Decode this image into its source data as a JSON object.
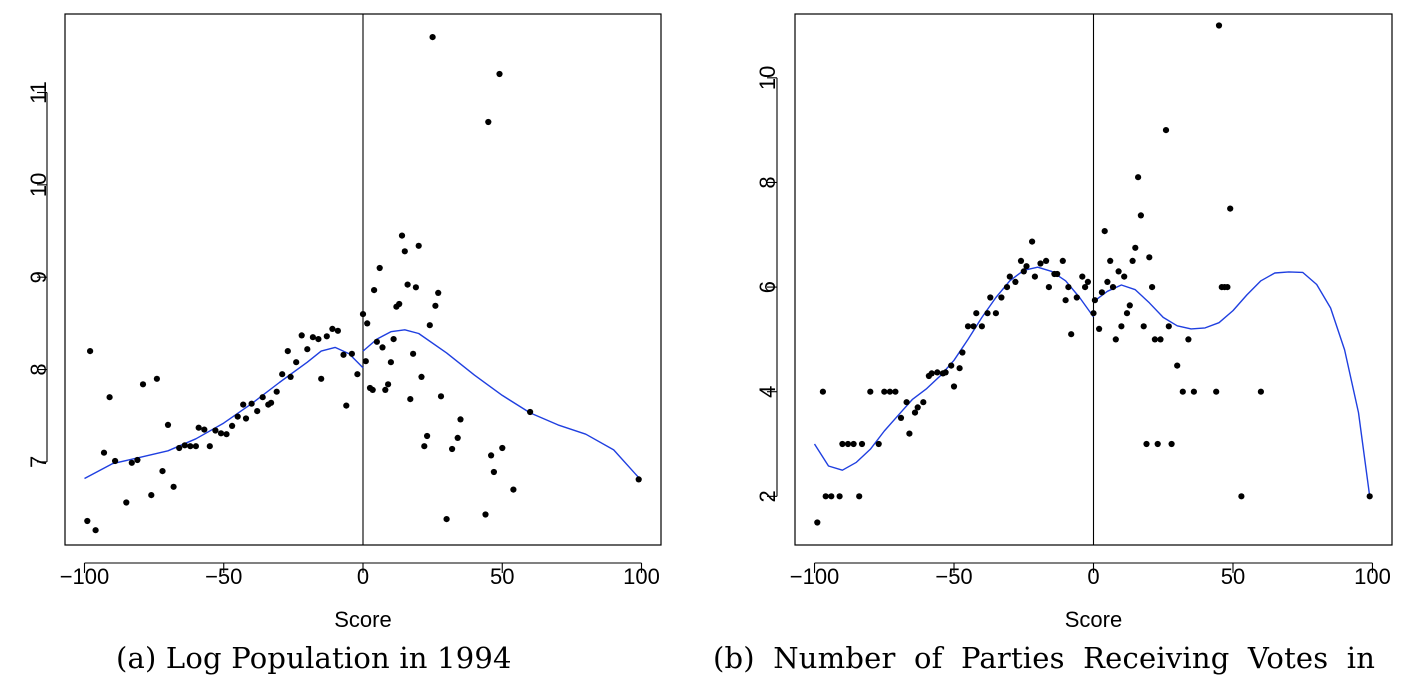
{
  "captions": {
    "a": "(a) Log Population in 1994",
    "b": "(b)  Number  of  Parties  Receiving  Votes  in"
  },
  "chart_data": [
    {
      "type": "scatter",
      "title": "",
      "caption": "(a) Log Population in 1994",
      "xlabel": "Score",
      "ylabel": "",
      "xlim": [
        -107,
        107
      ],
      "ylim": [
        6.1,
        11.85
      ],
      "xticks": [
        -100,
        -50,
        0,
        50,
        100
      ],
      "xtick_labels": [
        "−100",
        "−50",
        "0",
        "50",
        "100"
      ],
      "yticks": [
        7,
        8,
        9,
        10,
        11
      ],
      "ytick_labels": [
        "7",
        "8",
        "9",
        "10",
        "11"
      ],
      "cutoff_line_x": 0,
      "grid": false,
      "point_color": "#000000",
      "fit_color": "#1f3fe0",
      "points": [
        [
          -99,
          6.36
        ],
        [
          -98,
          8.2
        ],
        [
          -96,
          6.26
        ],
        [
          -93,
          7.1
        ],
        [
          -91,
          7.7
        ],
        [
          -89,
          7.01
        ],
        [
          -85,
          6.56
        ],
        [
          -83,
          6.99
        ],
        [
          -81,
          7.02
        ],
        [
          -79,
          7.84
        ],
        [
          -76,
          6.64
        ],
        [
          -74,
          7.9
        ],
        [
          -72,
          6.9
        ],
        [
          -70,
          7.4
        ],
        [
          -68,
          6.73
        ],
        [
          -66,
          7.15
        ],
        [
          -64,
          7.18
        ],
        [
          -62,
          7.17
        ],
        [
          -60,
          7.17
        ],
        [
          -59,
          7.37
        ],
        [
          -57,
          7.35
        ],
        [
          -55,
          7.17
        ],
        [
          -53,
          7.34
        ],
        [
          -51,
          7.31
        ],
        [
          -49,
          7.3
        ],
        [
          -47,
          7.39
        ],
        [
          -45,
          7.49
        ],
        [
          -43,
          7.62
        ],
        [
          -42,
          7.47
        ],
        [
          -40,
          7.63
        ],
        [
          -38,
          7.55
        ],
        [
          -36,
          7.7
        ],
        [
          -34,
          7.62
        ],
        [
          -33,
          7.64
        ],
        [
          -31,
          7.76
        ],
        [
          -29,
          7.95
        ],
        [
          -27,
          8.2
        ],
        [
          -26,
          7.92
        ],
        [
          -24,
          8.08
        ],
        [
          -22,
          8.37
        ],
        [
          -20,
          8.22
        ],
        [
          -18,
          8.35
        ],
        [
          -16,
          8.33
        ],
        [
          -15,
          7.9
        ],
        [
          -13,
          8.36
        ],
        [
          -11,
          8.44
        ],
        [
          -9,
          8.42
        ],
        [
          -7,
          8.16
        ],
        [
          -6,
          7.61
        ],
        [
          -4,
          8.17
        ],
        [
          -2,
          7.95
        ],
        [
          0,
          8.6
        ],
        [
          1,
          8.09
        ],
        [
          1.5,
          8.5
        ],
        [
          2.5,
          7.8
        ],
        [
          3.5,
          7.78
        ],
        [
          4,
          8.86
        ],
        [
          5,
          8.3
        ],
        [
          6,
          9.1
        ],
        [
          7,
          8.24
        ],
        [
          8,
          7.78
        ],
        [
          9,
          7.84
        ],
        [
          10,
          8.08
        ],
        [
          11,
          8.33
        ],
        [
          12,
          8.68
        ],
        [
          13,
          8.71
        ],
        [
          14,
          9.45
        ],
        [
          15,
          9.28
        ],
        [
          16,
          8.92
        ],
        [
          17,
          7.68
        ],
        [
          18,
          8.17
        ],
        [
          19,
          8.89
        ],
        [
          20,
          9.34
        ],
        [
          21,
          7.92
        ],
        [
          22,
          7.17
        ],
        [
          23,
          7.28
        ],
        [
          24,
          8.48
        ],
        [
          25,
          11.6
        ],
        [
          26,
          8.69
        ],
        [
          27,
          8.83
        ],
        [
          28,
          7.71
        ],
        [
          30,
          6.38
        ],
        [
          32,
          7.14
        ],
        [
          34,
          7.26
        ],
        [
          35,
          7.46
        ],
        [
          44,
          6.43
        ],
        [
          45,
          10.68
        ],
        [
          46,
          7.07
        ],
        [
          47,
          6.89
        ],
        [
          49,
          11.2
        ],
        [
          50,
          7.15
        ],
        [
          54,
          6.7
        ],
        [
          60,
          7.54
        ],
        [
          99,
          6.81
        ]
      ],
      "fit_left": [
        [
          -100,
          6.82
        ],
        [
          -90,
          6.98
        ],
        [
          -80,
          7.05
        ],
        [
          -70,
          7.12
        ],
        [
          -60,
          7.25
        ],
        [
          -50,
          7.42
        ],
        [
          -40,
          7.63
        ],
        [
          -30,
          7.86
        ],
        [
          -20,
          8.08
        ],
        [
          -15,
          8.2
        ],
        [
          -10,
          8.24
        ],
        [
          -5,
          8.17
        ],
        [
          0,
          8.02
        ]
      ],
      "fit_right": [
        [
          0,
          8.2
        ],
        [
          5,
          8.33
        ],
        [
          10,
          8.41
        ],
        [
          15,
          8.43
        ],
        [
          20,
          8.39
        ],
        [
          30,
          8.18
        ],
        [
          40,
          7.94
        ],
        [
          50,
          7.72
        ],
        [
          60,
          7.53
        ],
        [
          70,
          7.4
        ],
        [
          80,
          7.3
        ],
        [
          90,
          7.13
        ],
        [
          99,
          6.83
        ]
      ]
    },
    {
      "type": "scatter",
      "title": "",
      "caption": "(b)  Number  of  Parties  Receiving  Votes  in",
      "xlabel": "Score",
      "ylabel": "",
      "xlim": [
        -107,
        107
      ],
      "ylim": [
        1.07,
        11.22
      ],
      "xticks": [
        -100,
        -50,
        0,
        50,
        100
      ],
      "xtick_labels": [
        "−100",
        "−50",
        "0",
        "50",
        "100"
      ],
      "yticks": [
        2,
        4,
        6,
        8,
        10
      ],
      "ytick_labels": [
        "2",
        "4",
        "6",
        "8",
        "10"
      ],
      "cutoff_line_x": 0,
      "grid": false,
      "point_color": "#000000",
      "fit_color": "#1f3fe0",
      "points": [
        [
          -99,
          1.5
        ],
        [
          -97,
          4
        ],
        [
          -96,
          2
        ],
        [
          -94,
          2
        ],
        [
          -91,
          2
        ],
        [
          -90,
          3
        ],
        [
          -88,
          3
        ],
        [
          -86,
          3
        ],
        [
          -84,
          2
        ],
        [
          -83,
          3
        ],
        [
          -80,
          4
        ],
        [
          -77,
          3
        ],
        [
          -75,
          4
        ],
        [
          -73,
          4
        ],
        [
          -71,
          4
        ],
        [
          -69,
          3.5
        ],
        [
          -67,
          3.8
        ],
        [
          -66,
          3.2
        ],
        [
          -64,
          3.6
        ],
        [
          -63,
          3.7
        ],
        [
          -61,
          3.8
        ],
        [
          -59,
          4.3
        ],
        [
          -58,
          4.35
        ],
        [
          -56,
          4.37
        ],
        [
          -54,
          4.35
        ],
        [
          -53,
          4.37
        ],
        [
          -51,
          4.5
        ],
        [
          -50,
          4.1
        ],
        [
          -48,
          4.45
        ],
        [
          -47,
          4.75
        ],
        [
          -45,
          5.25
        ],
        [
          -43,
          5.25
        ],
        [
          -42,
          5.5
        ],
        [
          -40,
          5.25
        ],
        [
          -38,
          5.5
        ],
        [
          -37,
          5.8
        ],
        [
          -35,
          5.5
        ],
        [
          -33,
          5.8
        ],
        [
          -31,
          6
        ],
        [
          -30,
          6.2
        ],
        [
          -28,
          6.1
        ],
        [
          -26,
          6.5
        ],
        [
          -25,
          6.3
        ],
        [
          -24,
          6.4
        ],
        [
          -22,
          6.87
        ],
        [
          -21,
          6.2
        ],
        [
          -19,
          6.45
        ],
        [
          -17,
          6.5
        ],
        [
          -16,
          6
        ],
        [
          -14,
          6.25
        ],
        [
          -13,
          6.25
        ],
        [
          -11,
          6.5
        ],
        [
          -10,
          5.75
        ],
        [
          -9,
          6
        ],
        [
          -8,
          5.1
        ],
        [
          -6,
          5.8
        ],
        [
          -4,
          6.2
        ],
        [
          -3,
          6.0
        ],
        [
          -2,
          6.1
        ],
        [
          0,
          5.5
        ],
        [
          0.5,
          5.75
        ],
        [
          2,
          5.2
        ],
        [
          3,
          5.9
        ],
        [
          4,
          7.07
        ],
        [
          5,
          6.1
        ],
        [
          6,
          6.5
        ],
        [
          7,
          6.0
        ],
        [
          8,
          5.0
        ],
        [
          9,
          6.3
        ],
        [
          10,
          5.25
        ],
        [
          11,
          6.2
        ],
        [
          12,
          5.5
        ],
        [
          13,
          5.65
        ],
        [
          14,
          6.5
        ],
        [
          15,
          6.75
        ],
        [
          16,
          8.1
        ],
        [
          17,
          7.37
        ],
        [
          18,
          5.25
        ],
        [
          19,
          3
        ],
        [
          20,
          6.57
        ],
        [
          21,
          6.0
        ],
        [
          22,
          5.0
        ],
        [
          23,
          3
        ],
        [
          24,
          5.0
        ],
        [
          26,
          9.0
        ],
        [
          27,
          5.25
        ],
        [
          28,
          3
        ],
        [
          30,
          4.5
        ],
        [
          32,
          4.0
        ],
        [
          34,
          5.0
        ],
        [
          36,
          4.0
        ],
        [
          44,
          4.0
        ],
        [
          45,
          11.0
        ],
        [
          46,
          6.0
        ],
        [
          47,
          6.0
        ],
        [
          48,
          6.0
        ],
        [
          49,
          7.5
        ],
        [
          53,
          2.0
        ],
        [
          60,
          4.0
        ],
        [
          99,
          2.0
        ]
      ],
      "fit_left": [
        [
          -100,
          3.0
        ],
        [
          -95,
          2.58
        ],
        [
          -90,
          2.5
        ],
        [
          -85,
          2.65
        ],
        [
          -80,
          2.9
        ],
        [
          -75,
          3.25
        ],
        [
          -70,
          3.55
        ],
        [
          -65,
          3.85
        ],
        [
          -60,
          4.05
        ],
        [
          -55,
          4.3
        ],
        [
          -50,
          4.6
        ],
        [
          -45,
          5.0
        ],
        [
          -40,
          5.42
        ],
        [
          -35,
          5.8
        ],
        [
          -30,
          6.12
        ],
        [
          -25,
          6.32
        ],
        [
          -20,
          6.38
        ],
        [
          -15,
          6.3
        ],
        [
          -10,
          6.12
        ],
        [
          -5,
          5.8
        ],
        [
          0,
          5.43
        ]
      ],
      "fit_right": [
        [
          0,
          5.72
        ],
        [
          5,
          5.92
        ],
        [
          10,
          6.04
        ],
        [
          15,
          5.95
        ],
        [
          20,
          5.7
        ],
        [
          25,
          5.42
        ],
        [
          30,
          5.26
        ],
        [
          35,
          5.2
        ],
        [
          40,
          5.22
        ],
        [
          45,
          5.32
        ],
        [
          50,
          5.55
        ],
        [
          55,
          5.85
        ],
        [
          60,
          6.12
        ],
        [
          65,
          6.27
        ],
        [
          70,
          6.29
        ],
        [
          75,
          6.28
        ],
        [
          80,
          6.05
        ],
        [
          85,
          5.6
        ],
        [
          90,
          4.8
        ],
        [
          95,
          3.6
        ],
        [
          99,
          2.0
        ]
      ]
    }
  ]
}
